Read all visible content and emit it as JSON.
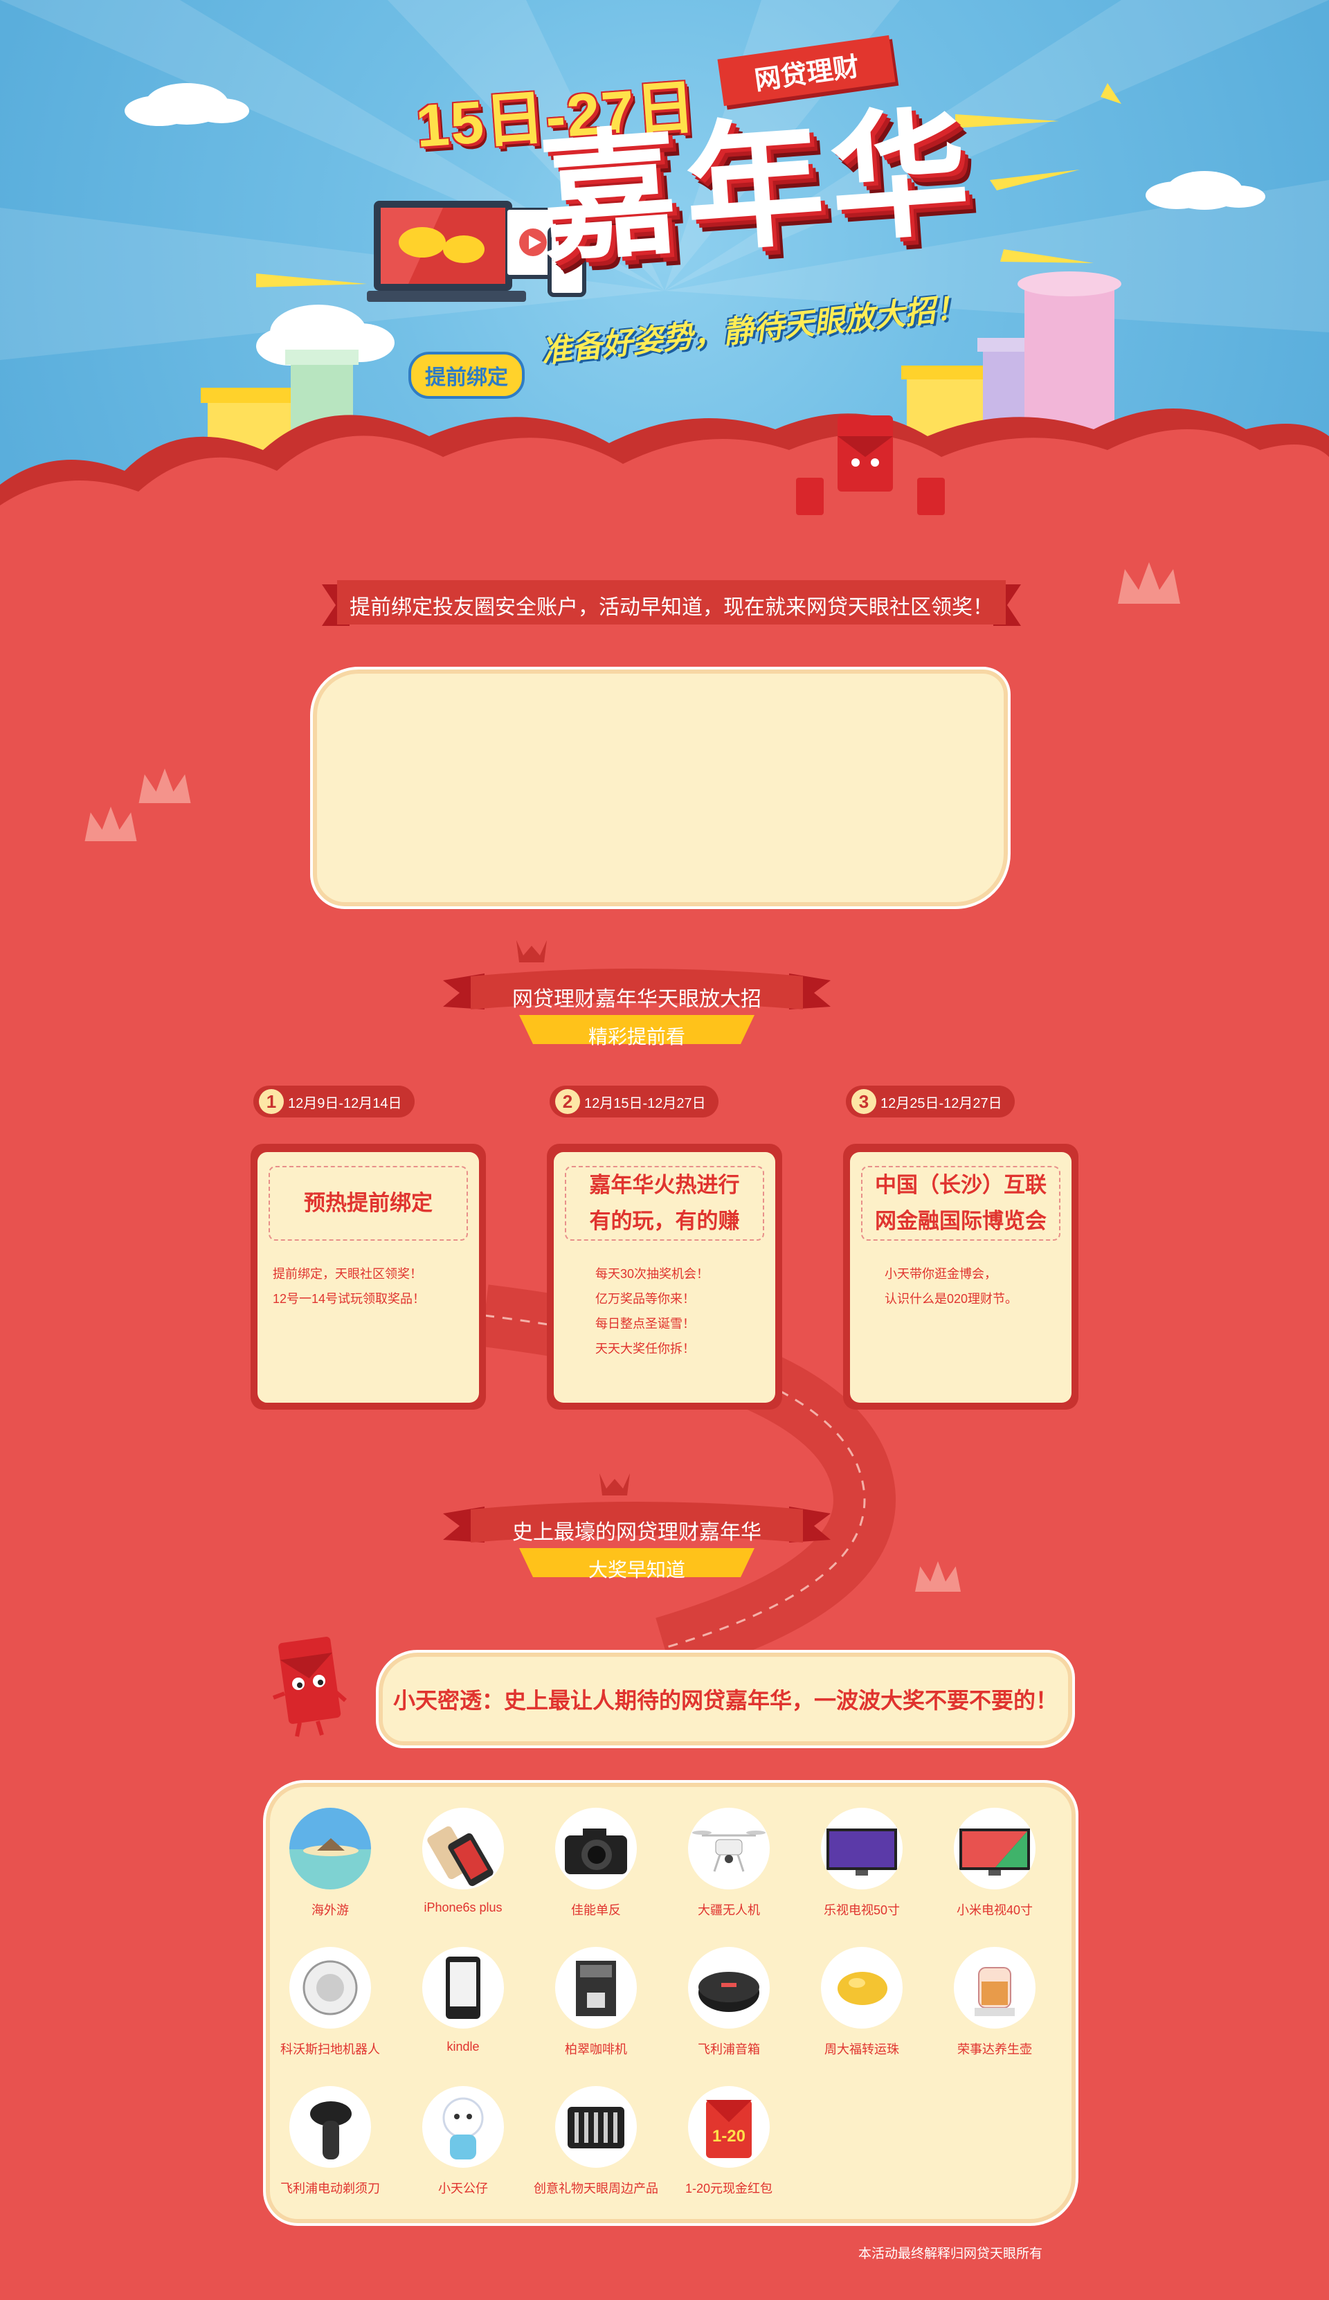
{
  "hero": {
    "date_title": "15日-27日",
    "tag": "网贷理财",
    "main_title": "嘉年华",
    "slogan": "准备好姿势，静待天眼放大招！",
    "bind_badge": "提前绑定"
  },
  "notice_banner": "提前绑定投友圈安全账户，活动早知道，现在就来网贷天眼社区领奖！",
  "section1": {
    "title": "网贷理财嘉年华天眼放大招",
    "subtitle": "精彩提前看"
  },
  "steps": [
    {
      "num": "1",
      "date": "12月9日-12月14日",
      "heading": "预热提前绑定",
      "lines": [
        "提前绑定，天眼社区领奖！",
        "12号一14号试玩领取奖品！"
      ]
    },
    {
      "num": "2",
      "date": "12月15日-12月27日",
      "heading": "嘉年华火热进行\n有的玩，有的赚",
      "lines": [
        "每天30次抽奖机会！",
        "亿万奖品等你来！",
        "每日整点圣诞雪！",
        "天天大奖任你拆！"
      ]
    },
    {
      "num": "3",
      "date": "12月25日-12月27日",
      "heading": "中国（长沙）互联\n网金融国际博览会",
      "lines": [
        "小天带你逛金博会，",
        "认识什么是020理财节。"
      ]
    }
  ],
  "section2": {
    "title": "史上最壕的网贷理财嘉年华",
    "subtitle": "大奖早知道"
  },
  "slogan_box": "小天密透：史上最让人期待的网贷嘉年华，一波波大奖不要不要的！",
  "prizes": [
    {
      "name": "海外游",
      "icon": "beach-icon"
    },
    {
      "name": "iPhone6s plus",
      "icon": "phone-icon"
    },
    {
      "name": "佳能单反",
      "icon": "camera-icon"
    },
    {
      "name": "大疆无人机",
      "icon": "drone-icon"
    },
    {
      "name": "乐视电视50寸",
      "icon": "tv-icon"
    },
    {
      "name": "小米电视40寸",
      "icon": "tv-icon"
    },
    {
      "name": "科沃斯扫地机器人",
      "icon": "robot-vacuum-icon"
    },
    {
      "name": "kindle",
      "icon": "ereader-icon"
    },
    {
      "name": "柏翠咖啡机",
      "icon": "coffee-machine-icon"
    },
    {
      "name": "飞利浦音箱",
      "icon": "speaker-icon"
    },
    {
      "name": "周大福转运珠",
      "icon": "gold-bead-icon"
    },
    {
      "name": "荣事达养生壶",
      "icon": "kettle-icon"
    },
    {
      "name": "飞利浦电动剃须刀",
      "icon": "shaver-icon"
    },
    {
      "name": "小天公仔",
      "icon": "plush-doll-icon"
    },
    {
      "name": "创意礼物天眼周边产品",
      "icon": "gift-set-icon"
    },
    {
      "name": "1-20元现金红包",
      "icon": "red-envelope-icon",
      "badge": "1-20"
    }
  ],
  "footer_note": "本活动最终解释归网贷天眼所有",
  "colors": {
    "page_bg": "#e8524f",
    "cream": "#fdf0c8",
    "dark_red": "#c8322f",
    "sky": "#72bfe6",
    "yellow": "#ffd22b"
  }
}
